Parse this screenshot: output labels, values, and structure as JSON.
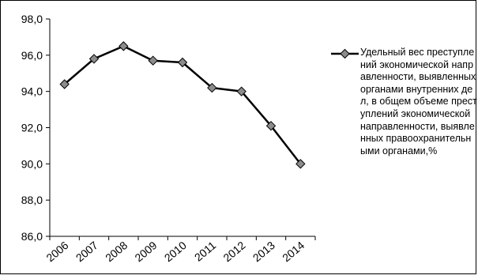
{
  "chart_data": {
    "type": "line",
    "title": "",
    "xlabel": "",
    "ylabel": "",
    "categories": [
      "2006",
      "2007",
      "2008",
      "2009",
      "2010",
      "2011",
      "2012",
      "2013",
      "2014"
    ],
    "series": [
      {
        "name": "Удельный вес преступлений экономической направленности, выявленных органами внутренних дел, в общем объеме преступлений экономической направленности, выявленных правоохранительными органами,%",
        "values": [
          94.4,
          95.8,
          96.5,
          95.7,
          95.6,
          94.2,
          94.0,
          92.1,
          90.0
        ],
        "color": "#000000",
        "marker": "diamond",
        "marker_color": "#8c8c8c"
      }
    ],
    "ylim": [
      86.0,
      98.0
    ],
    "yticks": [
      "86,0",
      "88,0",
      "90,0",
      "92,0",
      "94,0",
      "96,0",
      "98,0"
    ],
    "grid": false,
    "legend_position": "right"
  }
}
